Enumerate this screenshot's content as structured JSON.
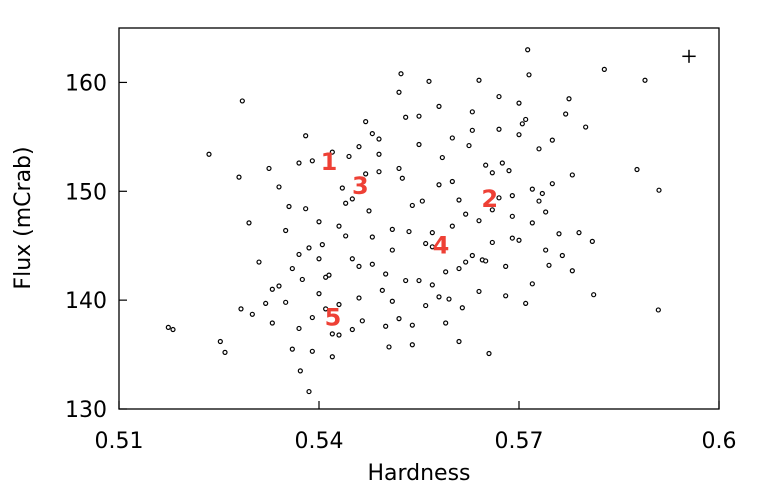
{
  "chart_data": {
    "type": "scatter",
    "xlabel": "Hardness",
    "ylabel": "Flux (mCrab)",
    "xlim": [
      0.51,
      0.6
    ],
    "ylim": [
      130,
      165
    ],
    "xticks": [
      0.51,
      0.54,
      0.57,
      0.6
    ],
    "yticks": [
      130,
      140,
      150,
      160
    ],
    "color": "#000000",
    "x": [
      0.5174,
      0.5181,
      0.5235,
      0.5285,
      0.5252,
      0.5259,
      0.528,
      0.5283,
      0.5325,
      0.5372,
      0.5385,
      0.5523,
      0.5713,
      0.5889,
      0.591,
      0.5909,
      0.5828,
      0.5877,
      0.5812,
      0.531,
      0.533,
      0.535,
      0.534,
      0.536,
      0.537,
      0.538,
      0.539,
      0.54,
      0.541,
      0.542,
      0.543,
      0.544,
      0.545,
      0.546,
      0.547,
      0.548,
      0.549,
      0.55,
      0.551,
      0.552,
      0.553,
      0.554,
      0.555,
      0.556,
      0.557,
      0.558,
      0.559,
      0.56,
      0.561,
      0.562,
      0.563,
      0.564,
      0.565,
      0.566,
      0.567,
      0.568,
      0.569,
      0.57,
      0.571,
      0.572,
      0.573,
      0.574,
      0.575,
      0.577,
      0.579,
      0.581,
      0.5295,
      0.532,
      0.535,
      0.5375,
      0.539,
      0.5405,
      0.542,
      0.5435,
      0.545,
      0.5465,
      0.548,
      0.5495,
      0.551,
      0.5525,
      0.554,
      0.5555,
      0.557,
      0.5585,
      0.56,
      0.5615,
      0.563,
      0.5645,
      0.566,
      0.5675,
      0.569,
      0.5705,
      0.572,
      0.5735,
      0.575,
      0.5765,
      0.578,
      0.53,
      0.533,
      0.536,
      0.538,
      0.54,
      0.542,
      0.544,
      0.546,
      0.548,
      0.55,
      0.552,
      0.554,
      0.556,
      0.558,
      0.56,
      0.562,
      0.564,
      0.566,
      0.568,
      0.57,
      0.572,
      0.574,
      0.576,
      0.578,
      0.58,
      0.534,
      0.537,
      0.539,
      0.541,
      0.543,
      0.545,
      0.547,
      0.549,
      0.551,
      0.553,
      0.555,
      0.557,
      0.559,
      0.561,
      0.563,
      0.565,
      0.567,
      0.569,
      0.571,
      0.573,
      0.5355,
      0.5385,
      0.5415,
      0.5445,
      0.5475,
      0.5505,
      0.5535,
      0.5565,
      0.5595,
      0.5625,
      0.5655,
      0.5685,
      0.5715,
      0.5745,
      0.5775,
      0.537,
      0.54,
      0.543,
      0.546,
      0.549,
      0.552,
      0.555,
      0.558,
      0.561,
      0.564,
      0.567,
      0.57
    ],
    "y": [
      137.5,
      137.3,
      153.4,
      158.3,
      136.2,
      135.2,
      151.3,
      139.2,
      152.1,
      133.5,
      131.6,
      160.8,
      163,
      160.2,
      150.1,
      139.1,
      161.2,
      152,
      140.5,
      143.5,
      141,
      139.8,
      150.4,
      135.5,
      144.2,
      155.1,
      138.4,
      147.2,
      142.1,
      153.6,
      136.8,
      145.9,
      149.3,
      140.2,
      156.4,
      143.3,
      151.8,
      137.6,
      146.5,
      159.1,
      141.8,
      148.7,
      154.3,
      139.5,
      144.9,
      157.8,
      142.6,
      150.9,
      136.2,
      147.9,
      155.6,
      140.8,
      152.4,
      145.3,
      158.7,
      143.1,
      149.6,
      155.2,
      139.7,
      147.1,
      153.9,
      144.6,
      150.7,
      157.1,
      146.2,
      145.4,
      147.1,
      139.7,
      146.4,
      141.9,
      152.8,
      145.1,
      136.9,
      150.3,
      143.8,
      138.1,
      155.3,
      140.9,
      144.6,
      151.2,
      137.7,
      149.1,
      141.4,
      153.1,
      146.8,
      139.3,
      157.3,
      143.7,
      148.3,
      152.6,
      145.7,
      156.2,
      141.5,
      149.8,
      154.7,
      144.1,
      151.5,
      138.7,
      137.9,
      142.9,
      148.4,
      140.6,
      134.8,
      148.9,
      143.1,
      145.8,
      142.4,
      152.1,
      135.9,
      145.2,
      140.3,
      154.9,
      143.5,
      147.3,
      151.7,
      140.4,
      145.5,
      150.2,
      148.1,
      146.1,
      142.7,
      155.9,
      141.3,
      152.6,
      135.3,
      139.2,
      146.8,
      137.3,
      151.6,
      154.8,
      139.9,
      156.8,
      141.8,
      146.2,
      137.9,
      149.2,
      144.1,
      143.6,
      155.7,
      147.7,
      156.6,
      149.1,
      148.6,
      144.8,
      142.3,
      153.2,
      148.2,
      135.7,
      146.3,
      160.1,
      140.1,
      154.2,
      135.1,
      151.9,
      160.7,
      143.2,
      158.5,
      137.4,
      143.8,
      139.6,
      154.1,
      153.4,
      138.3,
      156.9,
      150.6,
      142.9,
      160.2,
      149.4,
      158.1
    ],
    "annotations": [
      {
        "text": "1",
        "x": 0.5415,
        "y": 152.8
      },
      {
        "text": "2",
        "x": 0.5656,
        "y": 149.4
      },
      {
        "text": "3",
        "x": 0.5462,
        "y": 150.6
      },
      {
        "text": "4",
        "x": 0.5583,
        "y": 145.1
      },
      {
        "text": "5",
        "x": 0.5421,
        "y": 138.5
      }
    ],
    "annotation_color": "#ee4035",
    "error_cross": {
      "x": 0.5955,
      "y": 162.4,
      "xerr": 0.001,
      "yerr": 0.6
    }
  }
}
